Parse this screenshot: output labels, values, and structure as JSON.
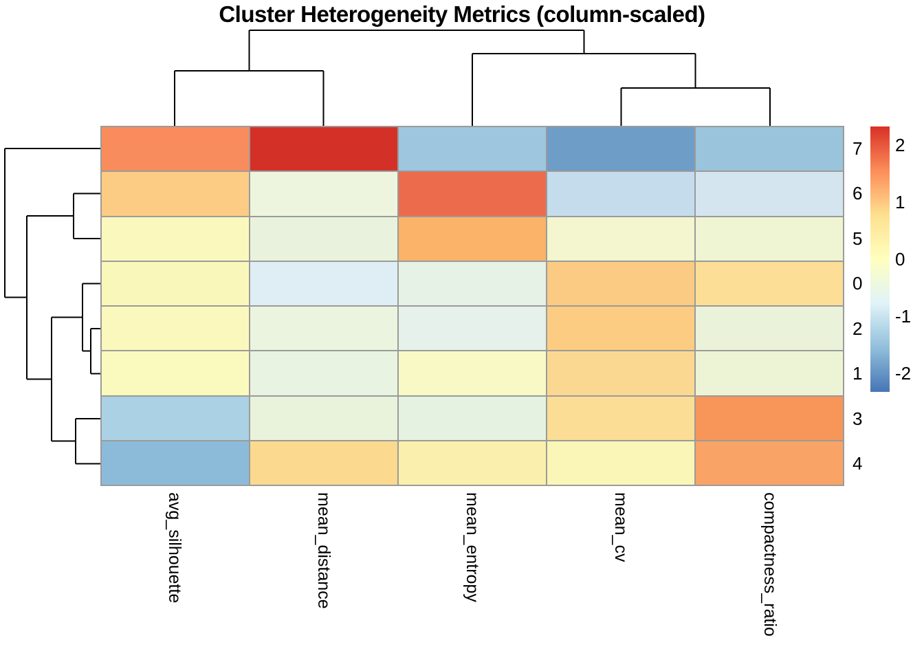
{
  "title": "Cluster Heterogeneity Metrics (column-scaled)",
  "chart_data": {
    "type": "heatmap",
    "title": "Cluster Heterogeneity Metrics (column-scaled)",
    "columns": [
      "avg_silhouette",
      "mean_distance",
      "mean_entropy",
      "mean_cv",
      "compactness_ratio"
    ],
    "rows": [
      "7",
      "6",
      "5",
      "0",
      "2",
      "1",
      "3",
      "4"
    ],
    "values": [
      [
        1.6,
        2.2,
        -1.3,
        -1.9,
        -1.35
      ],
      [
        1.0,
        -0.35,
        1.8,
        -1.0,
        -0.85
      ],
      [
        0.0,
        -0.45,
        1.2,
        -0.2,
        -0.3
      ],
      [
        -0.05,
        -0.75,
        -0.55,
        1.0,
        0.6
      ],
      [
        -0.05,
        -0.45,
        -0.6,
        1.0,
        -0.35
      ],
      [
        0.0,
        -0.4,
        -0.1,
        0.8,
        -0.3
      ],
      [
        -1.25,
        -0.45,
        -0.55,
        0.7,
        1.5
      ],
      [
        -1.55,
        0.75,
        0.4,
        0.05,
        1.35
      ]
    ],
    "cell_colors": [
      [
        "#F98C5C",
        "#D33128",
        "#9EC6DE",
        "#6E9DC8",
        "#99C4DC"
      ],
      [
        "#FCCB84",
        "#EEF5DE",
        "#EC6B4D",
        "#C4DCEC",
        "#D4E5EF"
      ],
      [
        "#FBF8BE",
        "#E9F2DC",
        "#FBB269",
        "#F3F6CE",
        "#EFF4D3"
      ],
      [
        "#FAF7BB",
        "#DFEEF4",
        "#E7F2E7",
        "#FBCB83",
        "#FCDE97"
      ],
      [
        "#FAF8BC",
        "#EAF4DF",
        "#E5F1EA",
        "#FBCC82",
        "#EAF3D9"
      ],
      [
        "#FBFABE",
        "#E8F3E2",
        "#F8F9C4",
        "#FBD891",
        "#EDF4D5"
      ],
      [
        "#ABD2E4",
        "#E9F3DC",
        "#E5F2E2",
        "#FBDD96",
        "#F89659"
      ],
      [
        "#8CBBD9",
        "#FBD98E",
        "#FAEFAC",
        "#F9F6B8",
        "#F9A466"
      ]
    ],
    "grid_line_color": "#9B9B99",
    "dendrogram_color": "#000000",
    "colorbar": {
      "domain": [
        -2.33,
        2.33
      ],
      "ticks": [
        "2",
        "1",
        "0",
        "-1",
        "-2"
      ],
      "tick_values": [
        2,
        1,
        0,
        -1,
        -2
      ],
      "gradient_top_to_bottom": [
        "#D73027",
        "#FC8D59",
        "#FEE090",
        "#FFFFBF",
        "#E0F3F8",
        "#91BFDB",
        "#4575B4"
      ]
    },
    "col_dendrogram_segments": [
      [
        254.2,
        183,
        254.2,
        103
      ],
      [
        470.6,
        183,
        470.6,
        103
      ],
      [
        254.2,
        103,
        470.6,
        103
      ],
      [
        903.4,
        183,
        903.4,
        128
      ],
      [
        1119.8,
        183,
        1119.8,
        128
      ],
      [
        903.4,
        128,
        1119.8,
        128
      ],
      [
        687,
        183,
        687,
        78
      ],
      [
        1011.6,
        128,
        1011.6,
        78
      ],
      [
        687,
        78,
        1011.6,
        78
      ],
      [
        362.4,
        103,
        362.4,
        44
      ],
      [
        849.3,
        78,
        849.3,
        44
      ],
      [
        362.4,
        44,
        849.3,
        44
      ]
    ],
    "row_dendrogram_segments": [
      [
        146,
        215.75,
        7,
        215.75
      ],
      [
        146,
        281.25,
        107,
        281.25
      ],
      [
        146,
        346.75,
        107,
        346.75
      ],
      [
        107,
        281.25,
        107,
        346.75
      ],
      [
        107,
        314,
        39,
        314
      ],
      [
        146,
        412.25,
        120,
        412.25
      ],
      [
        146,
        477.75,
        132,
        477.75
      ],
      [
        146,
        543.25,
        132,
        543.25
      ],
      [
        132,
        477.75,
        132,
        543.25
      ],
      [
        132,
        510.5,
        120,
        510.5
      ],
      [
        120,
        412.25,
        120,
        510.5
      ],
      [
        120,
        461.4,
        75,
        461.4
      ],
      [
        146,
        608.75,
        110,
        608.75
      ],
      [
        146,
        674.25,
        110,
        674.25
      ],
      [
        110,
        608.75,
        110,
        674.25
      ],
      [
        110,
        641.5,
        75,
        641.5
      ],
      [
        75,
        461.4,
        75,
        641.5
      ],
      [
        75,
        551.45,
        39,
        551.45
      ],
      [
        39,
        314,
        39,
        551.45
      ],
      [
        39,
        432.7,
        7,
        432.7
      ],
      [
        7,
        215.75,
        7,
        432.7
      ]
    ]
  }
}
